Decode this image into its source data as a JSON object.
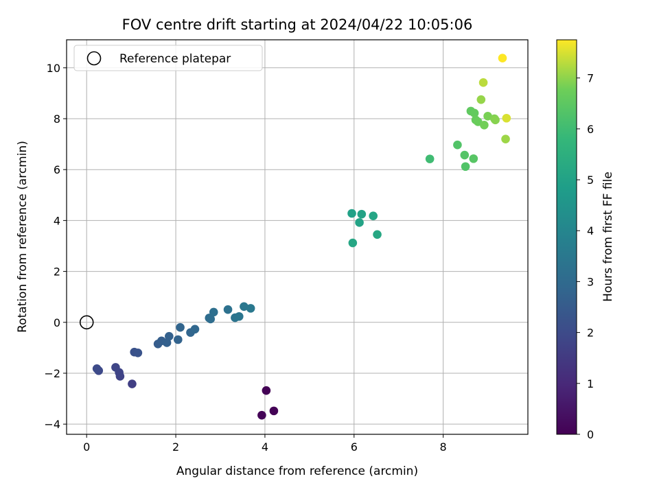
{
  "chart_data": {
    "type": "scatter",
    "title": "FOV centre drift starting at 2024/04/22 10:05:06",
    "xlabel": "Angular distance from reference (arcmin)",
    "ylabel": "Rotation from reference (arcmin)",
    "xlim": [
      -0.45,
      9.9
    ],
    "ylim": [
      -4.4,
      11.1
    ],
    "xticks": [
      0,
      2,
      4,
      6,
      8
    ],
    "yticks": [
      -4,
      -2,
      0,
      2,
      4,
      6,
      8,
      10
    ],
    "xtick_labels": [
      "0",
      "2",
      "4",
      "6",
      "8"
    ],
    "ytick_labels": [
      "−4",
      "−2",
      "0",
      "2",
      "4",
      "6",
      "8",
      "10"
    ],
    "grid": true,
    "legend": {
      "position": "top-left",
      "label": "Reference platepar"
    },
    "reference_point": {
      "x": 0,
      "y": 0
    },
    "colorbar": {
      "label": "Hours from first FF file",
      "colormap": "viridis",
      "range": [
        0,
        7.75
      ],
      "ticks": [
        0,
        1,
        2,
        3,
        4,
        5,
        6,
        7
      ],
      "tick_labels": [
        "0",
        "1",
        "2",
        "3",
        "4",
        "5",
        "6",
        "7"
      ]
    },
    "points": [
      {
        "x": 4.03,
        "y": -2.68,
        "hours": 0.02
      },
      {
        "x": 4.2,
        "y": -3.48,
        "hours": 0.05
      },
      {
        "x": 3.93,
        "y": -3.65,
        "hours": 0.08
      },
      {
        "x": 1.02,
        "y": -2.42,
        "hours": 1.65
      },
      {
        "x": 0.75,
        "y": -2.12,
        "hours": 1.75
      },
      {
        "x": 0.73,
        "y": -1.97,
        "hours": 1.8
      },
      {
        "x": 0.65,
        "y": -1.77,
        "hours": 1.85
      },
      {
        "x": 0.27,
        "y": -1.9,
        "hours": 1.95
      },
      {
        "x": 0.23,
        "y": -1.82,
        "hours": 2.0
      },
      {
        "x": 1.07,
        "y": -1.17,
        "hours": 2.2
      },
      {
        "x": 1.15,
        "y": -1.2,
        "hours": 2.25
      },
      {
        "x": 1.6,
        "y": -0.85,
        "hours": 2.55
      },
      {
        "x": 1.68,
        "y": -0.73,
        "hours": 2.6
      },
      {
        "x": 1.8,
        "y": -0.8,
        "hours": 2.65
      },
      {
        "x": 1.85,
        "y": -0.55,
        "hours": 2.7
      },
      {
        "x": 2.05,
        "y": -0.68,
        "hours": 2.75
      },
      {
        "x": 2.1,
        "y": -0.2,
        "hours": 2.8
      },
      {
        "x": 2.33,
        "y": -0.4,
        "hours": 2.85
      },
      {
        "x": 2.43,
        "y": -0.27,
        "hours": 2.9
      },
      {
        "x": 2.75,
        "y": 0.17,
        "hours": 3.05
      },
      {
        "x": 2.78,
        "y": 0.13,
        "hours": 3.1
      },
      {
        "x": 2.85,
        "y": 0.4,
        "hours": 3.15
      },
      {
        "x": 3.17,
        "y": 0.5,
        "hours": 3.25
      },
      {
        "x": 3.33,
        "y": 0.18,
        "hours": 3.35
      },
      {
        "x": 3.42,
        "y": 0.23,
        "hours": 3.4
      },
      {
        "x": 3.53,
        "y": 0.62,
        "hours": 3.45
      },
      {
        "x": 3.68,
        "y": 0.55,
        "hours": 3.5
      },
      {
        "x": 5.95,
        "y": 4.28,
        "hours": 4.95
      },
      {
        "x": 6.17,
        "y": 4.25,
        "hours": 5.0
      },
      {
        "x": 6.12,
        "y": 3.92,
        "hours": 5.05
      },
      {
        "x": 6.43,
        "y": 4.18,
        "hours": 5.1
      },
      {
        "x": 5.97,
        "y": 3.12,
        "hours": 5.15
      },
      {
        "x": 6.52,
        "y": 3.45,
        "hours": 5.2
      },
      {
        "x": 7.7,
        "y": 6.42,
        "hours": 6.0
      },
      {
        "x": 8.32,
        "y": 6.97,
        "hours": 6.3
      },
      {
        "x": 8.48,
        "y": 6.57,
        "hours": 6.35
      },
      {
        "x": 8.5,
        "y": 6.12,
        "hours": 6.3
      },
      {
        "x": 8.68,
        "y": 6.43,
        "hours": 6.4
      },
      {
        "x": 8.62,
        "y": 8.3,
        "hours": 6.55
      },
      {
        "x": 8.7,
        "y": 8.22,
        "hours": 6.6
      },
      {
        "x": 8.73,
        "y": 7.95,
        "hours": 6.65
      },
      {
        "x": 8.78,
        "y": 7.88,
        "hours": 6.7
      },
      {
        "x": 8.92,
        "y": 7.75,
        "hours": 6.8
      },
      {
        "x": 9.0,
        "y": 8.1,
        "hours": 6.85
      },
      {
        "x": 9.15,
        "y": 8.0,
        "hours": 6.9
      },
      {
        "x": 9.17,
        "y": 7.95,
        "hours": 6.95
      },
      {
        "x": 8.85,
        "y": 8.75,
        "hours": 7.05
      },
      {
        "x": 9.4,
        "y": 7.2,
        "hours": 7.1
      },
      {
        "x": 8.9,
        "y": 9.42,
        "hours": 7.3
      },
      {
        "x": 9.42,
        "y": 8.02,
        "hours": 7.5
      },
      {
        "x": 9.33,
        "y": 10.38,
        "hours": 7.75
      }
    ]
  }
}
